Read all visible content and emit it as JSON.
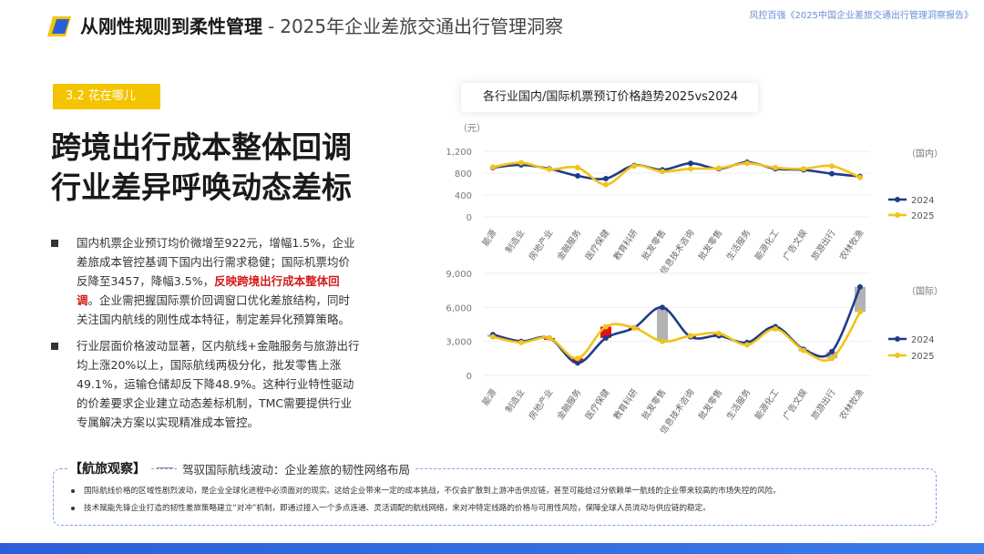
{
  "header": {
    "title_bold": "从刚性规则到柔性管理",
    "separator": "-",
    "title_sub": "2025年企业差旅交通出行管理洞察",
    "report_name": "风控百强《2025中国企业差旅交通出行管理洞察报告》"
  },
  "section": {
    "tag": "3.2  花在哪儿"
  },
  "headline": {
    "line1": "跨境出行成本整体回调",
    "line2": "行业差异呼唤动态差标"
  },
  "bullets": [
    {
      "text_before": "国内机票企业预订均价微增至922元，增幅1.5%，企业差旅成本管控基调下国内出行需求稳健；国际机票均价反降至3457，降幅3.5%，",
      "highlight": "反映跨境出行成本整体回调",
      "text_after": "。企业需把握国际票价回调窗口优化差旅结构，同时关注国内航线的刚性成本特征，制定差异化预算策略。"
    },
    {
      "text": "行业层面价格波动显著，区内航线+金融服务与旅游出行均上涨20%以上，国际航线两极分化，批发零售上涨49.1%，运输仓储却反下降48.9%。这种行业特性驱动的价差要求企业建立动态差标机制，TMC需要提供行业专属解决方案以实现精准成本管控。"
    }
  ],
  "chart_data": [
    {
      "type": "line",
      "title": "各行业国内/国际机票预订价格趋势2025vs2024",
      "panel_label": "（国内）",
      "ylabel": "（元）",
      "ylim": [
        0,
        1200
      ],
      "yticks": [
        "0",
        "400",
        "800",
        "1,200"
      ],
      "categories": [
        "能源",
        "制造业",
        "房地产业",
        "金融服务",
        "医疗保健",
        "教育科研",
        "批发零售",
        "信息技术咨询",
        "批发零售",
        "生活服务",
        "能源化工",
        "广告文娱",
        "旅游出行",
        "农林牧渔"
      ],
      "series": [
        {
          "name": "2024",
          "color": "#1f3b8a",
          "values": [
            900,
            950,
            880,
            750,
            700,
            940,
            860,
            980,
            880,
            1000,
            880,
            860,
            790,
            740
          ]
        },
        {
          "name": "2025",
          "color": "#f2c318",
          "values": [
            910,
            990,
            870,
            900,
            590,
            930,
            830,
            880,
            890,
            980,
            900,
            880,
            930,
            720
          ]
        }
      ]
    },
    {
      "type": "line",
      "panel_label": "（国际）",
      "ylim": [
        0,
        9000
      ],
      "yticks": [
        "0",
        "3,000",
        "6,000",
        "9,000"
      ],
      "categories": [
        "能源",
        "制造业",
        "房地产业",
        "金融服务",
        "医疗保健",
        "教育科研",
        "批发零售",
        "信息技术咨询",
        "批发零售",
        "生活服务",
        "能源化工",
        "广告文娱",
        "旅游出行",
        "农林牧渔"
      ],
      "series": [
        {
          "name": "2024",
          "color": "#1f3b8a",
          "values": [
            3600,
            3000,
            3300,
            1100,
            3300,
            4200,
            6000,
            3400,
            3500,
            2900,
            4300,
            2300,
            2100,
            7800
          ]
        },
        {
          "name": "2025",
          "color": "#f2c318",
          "values": [
            3400,
            2900,
            3300,
            1500,
            4300,
            4200,
            3000,
            3500,
            3700,
            2700,
            4100,
            2200,
            1500,
            5600
          ]
        }
      ]
    }
  ],
  "observation": {
    "title": "【航旅观察】",
    "subtitle": "驾驭国际航线波动：企业差旅的韧性网络布局",
    "items": [
      "国际航线价格的区域性剧烈波动，是企业全球化进程中必须面对的现实。这给企业带来一定的成本挑战，不仅会扩散到上游冲击供应链，甚至可能给过分依赖单一航线的企业带来较高的市场失控的风险。",
      "技术赋能先锋企业打造的韧性差旅策略建立“对冲”机制，即通过接入一个多点连通、灵活调配的航线网络，来对冲特定线路的价格与可用性风险，保障全球人员流动与供应链的稳定。"
    ]
  }
}
